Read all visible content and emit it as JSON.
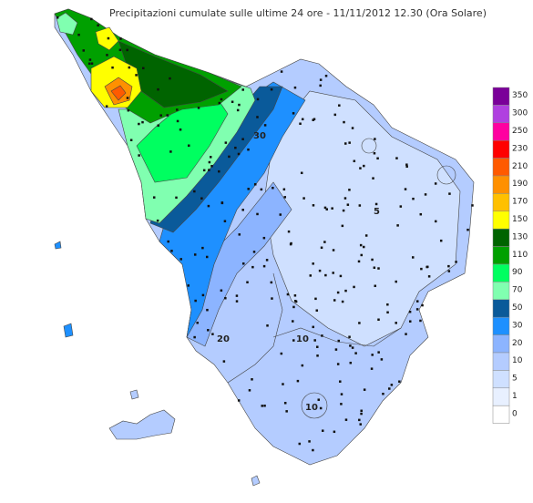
{
  "title": "Precipitazioni cumulate sulle ultime 24 ore - 11/11/2012 12.30 (Ora Solare)",
  "legend": [
    {
      "label": "350",
      "color": "#7a0099"
    },
    {
      "label": "300",
      "color": "#b040e0"
    },
    {
      "label": "250",
      "color": "#ff00a0"
    },
    {
      "label": "230",
      "color": "#ff0000"
    },
    {
      "label": "210",
      "color": "#ff5a00"
    },
    {
      "label": "190",
      "color": "#ff9000"
    },
    {
      "label": "170",
      "color": "#ffc000"
    },
    {
      "label": "150",
      "color": "#ffff00"
    },
    {
      "label": "130",
      "color": "#006400"
    },
    {
      "label": "110",
      "color": "#00a000"
    },
    {
      "label": "90",
      "color": "#00ff60"
    },
    {
      "label": "70",
      "color": "#80ffb0"
    },
    {
      "label": "50",
      "color": "#0a5a9a"
    },
    {
      "label": "30",
      "color": "#1e90ff"
    },
    {
      "label": "20",
      "color": "#8cb4ff"
    },
    {
      "label": "10",
      "color": "#b4ccff"
    },
    {
      "label": "5",
      "color": "#cfe0ff"
    },
    {
      "label": "1",
      "color": "#e8f0ff"
    },
    {
      "label": "0",
      "color": "#ffffff"
    }
  ],
  "contour_labels": [
    "10",
    "20",
    "30",
    "10",
    "5"
  ]
}
